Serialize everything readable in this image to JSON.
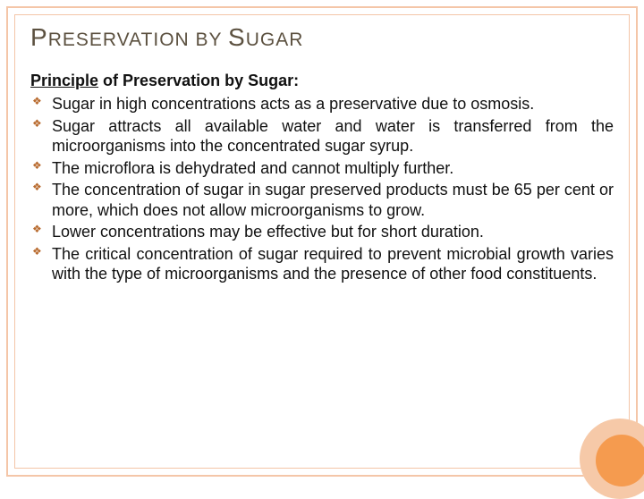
{
  "theme": {
    "background": "#ffffff",
    "frame_color": "#f4c6a8",
    "disc_outer_color": "#f6c9a8",
    "disc_inner_color": "#f59b4f",
    "title_color": "#5c5140",
    "text_color": "#111111",
    "bullet_color": "#b86a2e"
  },
  "title": {
    "p1_large": "P",
    "p1_small": "RESERVATION",
    "sep": " BY ",
    "p2_large": "S",
    "p2_small": "UGAR",
    "fontsize_large": 28,
    "fontsize_small": 21,
    "letter_spacing": 1
  },
  "subtitle": {
    "underlined": "Principle",
    "rest": " of Preservation by Sugar:",
    "fontsize": 18,
    "weight": "bold"
  },
  "bullets": {
    "fontsize": 18,
    "marker": "❖",
    "items": [
      "Sugar in high concentrations acts as a preservative due to osmosis.",
      "Sugar attracts all available water and water is transferred from the microorganisms into the concentrated sugar syrup.",
      "The microflora is dehydrated and cannot multiply further.",
      "The concentration of sugar in sugar preserved products must be 65 per cent or more, which does not allow microorganisms to grow.",
      "Lower concentrations may be effective but for short duration.",
      "The critical concentration of sugar required to prevent microbial growth varies with the type of microorganisms and the presence of other food constituents."
    ]
  }
}
